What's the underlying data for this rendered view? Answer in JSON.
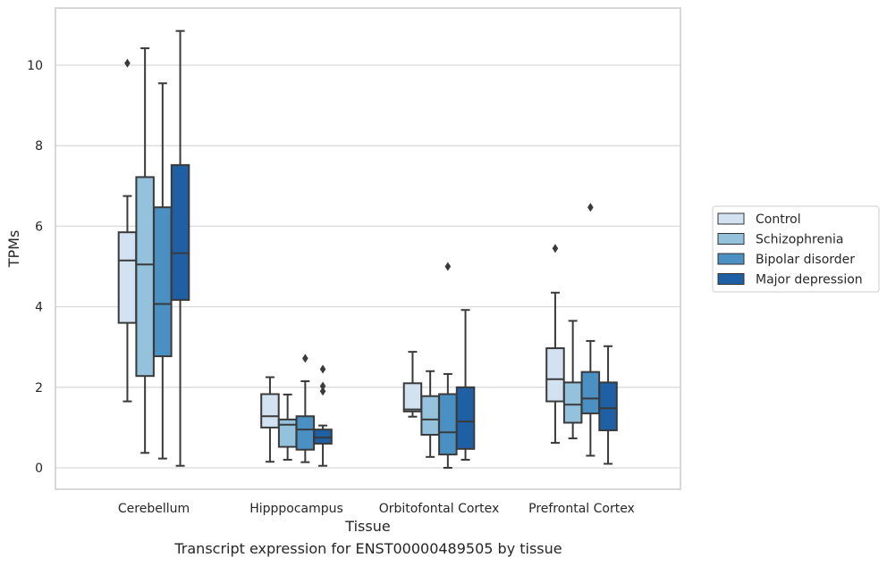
{
  "caption": "Transcript expression for ENST00000489505 by tissue",
  "colors": {
    "control": "#d3e2f1",
    "schizophrenia": "#94c1dc",
    "bipolar": "#4b90c2",
    "depression": "#1f5fa3",
    "box_edge": "#3a3a3a",
    "grid": "#d9d9d9",
    "frame": "#cccccc"
  },
  "chart_data": {
    "type": "box",
    "xlabel": "Tissue",
    "ylabel": "TPMs",
    "ylim": [
      -0.5,
      11.4
    ],
    "yticks": [
      0,
      2,
      4,
      6,
      8,
      10
    ],
    "grid": true,
    "legend_position": "right",
    "categories": [
      "Cerebellum",
      "Hipppocampus",
      "Orbitofontal Cortex",
      "Prefrontal Cortex"
    ],
    "series": [
      {
        "name": "Control",
        "color": "#d3e2f1",
        "boxes": [
          {
            "whislo": 1.65,
            "q1": 3.6,
            "med": 5.15,
            "q3": 5.85,
            "whishi": 6.75,
            "fliers": [
              10.05
            ]
          },
          {
            "whislo": 0.15,
            "q1": 1.0,
            "med": 1.28,
            "q3": 1.83,
            "whishi": 2.25,
            "fliers": []
          },
          {
            "whislo": 1.27,
            "q1": 1.4,
            "med": 1.45,
            "q3": 2.1,
            "whishi": 2.88,
            "fliers": []
          },
          {
            "whislo": 0.62,
            "q1": 1.65,
            "med": 2.2,
            "q3": 2.97,
            "whishi": 4.35,
            "fliers": [
              5.45
            ]
          }
        ]
      },
      {
        "name": "Schizophrenia",
        "color": "#94c1dc",
        "boxes": [
          {
            "whislo": 0.37,
            "q1": 2.28,
            "med": 5.05,
            "q3": 7.22,
            "whishi": 10.42,
            "fliers": []
          },
          {
            "whislo": 0.2,
            "q1": 0.52,
            "med": 1.07,
            "q3": 1.2,
            "whishi": 1.82,
            "fliers": []
          },
          {
            "whislo": 0.27,
            "q1": 0.82,
            "med": 1.2,
            "q3": 1.78,
            "whishi": 2.4,
            "fliers": []
          },
          {
            "whislo": 0.73,
            "q1": 1.12,
            "med": 1.57,
            "q3": 2.12,
            "whishi": 3.65,
            "fliers": []
          }
        ]
      },
      {
        "name": "Bipolar disorder",
        "color": "#4b90c2",
        "boxes": [
          {
            "whislo": 0.23,
            "q1": 2.77,
            "med": 4.07,
            "q3": 6.47,
            "whishi": 9.55,
            "fliers": []
          },
          {
            "whislo": 0.14,
            "q1": 0.45,
            "med": 0.95,
            "q3": 1.28,
            "whishi": 2.15,
            "fliers": [
              2.72
            ]
          },
          {
            "whislo": 0.0,
            "q1": 0.33,
            "med": 0.88,
            "q3": 1.83,
            "whishi": 2.33,
            "fliers": [
              5.0
            ]
          },
          {
            "whislo": 0.3,
            "q1": 1.35,
            "med": 1.72,
            "q3": 2.38,
            "whishi": 3.15,
            "fliers": [
              6.47
            ]
          }
        ]
      },
      {
        "name": "Major depression",
        "color": "#1f5fa3",
        "boxes": [
          {
            "whislo": 0.05,
            "q1": 4.17,
            "med": 5.33,
            "q3": 7.52,
            "whishi": 10.85,
            "fliers": []
          },
          {
            "whislo": 0.05,
            "q1": 0.6,
            "med": 0.75,
            "q3": 0.95,
            "whishi": 1.05,
            "fliers": [
              1.9,
              2.03,
              2.45
            ]
          },
          {
            "whislo": 0.2,
            "q1": 0.47,
            "med": 1.15,
            "q3": 2.0,
            "whishi": 3.92,
            "fliers": []
          },
          {
            "whislo": 0.1,
            "q1": 0.93,
            "med": 1.48,
            "q3": 2.12,
            "whishi": 3.02,
            "fliers": []
          }
        ]
      }
    ]
  }
}
